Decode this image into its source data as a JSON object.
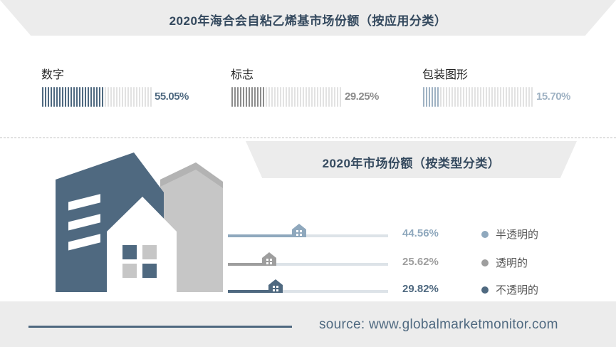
{
  "title_application": "2020年海合会自粘乙烯基市场份额（按应用分类）",
  "title_type": "2020年市场份额（按类型分类）",
  "chart_data": [
    {
      "type": "bar",
      "title": "2020年海合会自粘乙烯基市场份额（按应用分类）",
      "categories": [
        "数字",
        "标志",
        "包装图形"
      ],
      "values": [
        55.05,
        29.25,
        15.7
      ],
      "labels": [
        "55.05%",
        "29.25%",
        "15.70%"
      ],
      "colors": [
        "#4f6980",
        "#8c8c8c",
        "#9fb2c3"
      ],
      "unit": "%"
    },
    {
      "type": "bar",
      "title": "2020年市场份额（按类型分类）",
      "categories": [
        "半透明的",
        "透明的",
        "不透明的"
      ],
      "values": [
        44.56,
        25.62,
        29.82
      ],
      "labels": [
        "44.56%",
        "25.62%",
        "29.82%"
      ],
      "colors": [
        "#8fa8bd",
        "#9e9e9e",
        "#4f6980"
      ],
      "legend_position": "right",
      "unit": "%"
    }
  ],
  "source": "source: www.globalmarketmonitor.com",
  "colors": {
    "dark_blue": "#4f6980",
    "gray": "#8c8c8c",
    "light_blue": "#9fb2c3",
    "panel_gray": "#ececec"
  }
}
